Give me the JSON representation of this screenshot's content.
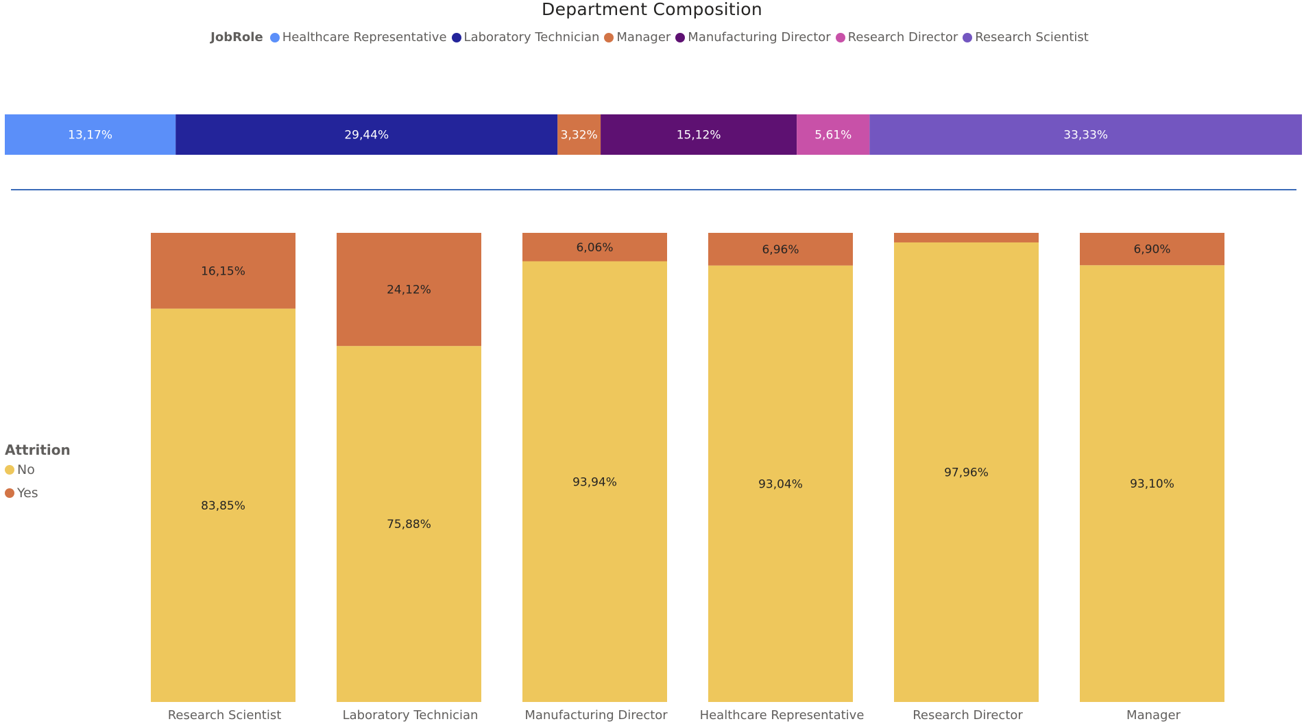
{
  "chart_data": [
    {
      "type": "bar",
      "orientation": "horizontal-stacked-100",
      "title": "Department Composition",
      "legend": {
        "title": "JobRole",
        "placement": "top-center",
        "items": [
          {
            "name": "Healthcare Representative",
            "color": "#5b8ff9"
          },
          {
            "name": "Laboratory Technician",
            "color": "#23249a"
          },
          {
            "name": "Manager",
            "color": "#d27446"
          },
          {
            "name": "Manufacturing Director",
            "color": "#5e1172"
          },
          {
            "name": "Research Director",
            "color": "#c851a8"
          },
          {
            "name": "Research Scientist",
            "color": "#7356c0"
          }
        ]
      },
      "segments": [
        {
          "name": "Healthcare Representative",
          "value": 13.17,
          "label": "13,17%",
          "color": "#5b8ff9"
        },
        {
          "name": "Laboratory Technician",
          "value": 29.44,
          "label": "29,44%",
          "color": "#23249a"
        },
        {
          "name": "Manager",
          "value": 3.32,
          "label": "3,32%",
          "color": "#d27446"
        },
        {
          "name": "Manufacturing Director",
          "value": 15.12,
          "label": "15,12%",
          "color": "#5e1172"
        },
        {
          "name": "Research Director",
          "value": 5.61,
          "label": "5,61%",
          "color": "#c851a8"
        },
        {
          "name": "Research Scientist",
          "value": 33.33,
          "label": "33,33%",
          "color": "#7356c0"
        }
      ]
    },
    {
      "type": "bar",
      "orientation": "vertical-stacked-100",
      "legend": {
        "title": "Attrition",
        "placement": "left",
        "items": [
          {
            "name": "No",
            "color": "#eec75c"
          },
          {
            "name": "Yes",
            "color": "#d27446"
          }
        ]
      },
      "ylim": [
        0,
        100
      ],
      "categories": [
        "Research Scientist",
        "Laboratory Technician",
        "Manufacturing Director",
        "Healthcare Representative",
        "Research Director",
        "Manager"
      ],
      "series": [
        {
          "name": "No",
          "color": "#eec75c",
          "values": [
            83.85,
            75.88,
            93.94,
            93.04,
            97.96,
            93.1
          ],
          "labels": [
            "83,85%",
            "75,88%",
            "93,94%",
            "93,04%",
            "97,96%",
            "93,10%"
          ]
        },
        {
          "name": "Yes",
          "color": "#d27446",
          "values": [
            16.15,
            24.12,
            6.06,
            6.96,
            2.04,
            6.9
          ],
          "labels": [
            "16,15%",
            "24,12%",
            "6,06%",
            "6,96%",
            "",
            "6,90%"
          ]
        }
      ]
    }
  ]
}
